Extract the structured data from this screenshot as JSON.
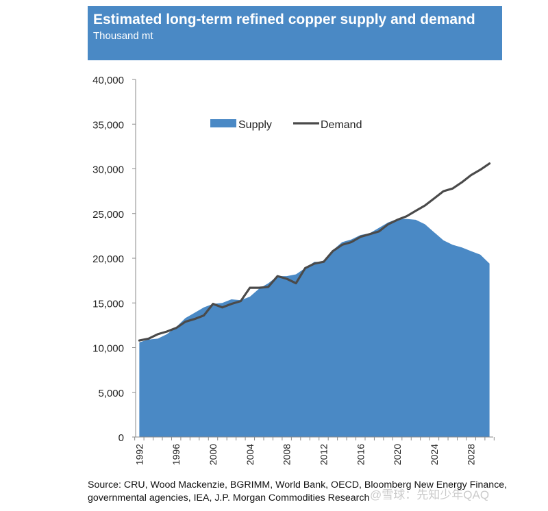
{
  "header": {
    "title": "Estimated long-term refined copper supply and demand",
    "subtitle": "Thousand mt"
  },
  "footer": {
    "source_line1": "Source: CRU, Wood Mackenzie, BGRIMM, World Bank, OECD, Bloomberg New Energy Finance,",
    "source_line2": "governmental agencies, IEA, J.P. Morgan Commodities Research",
    "watermark": "@雪球：先知少年QAQ"
  },
  "colors": {
    "header_band": "#4a89c5",
    "supply_area": "#4a89c5",
    "demand_line": "#4a4a4a"
  },
  "chart_data": {
    "type": "area",
    "title": "Estimated long-term refined copper supply and demand",
    "subtitle": "Thousand mt",
    "ylim": [
      0,
      40000
    ],
    "yticks": [
      0,
      5000,
      10000,
      15000,
      20000,
      25000,
      30000,
      35000,
      40000
    ],
    "ytick_labels": [
      "0",
      "5,000",
      "10,000",
      "15,000",
      "20,000",
      "25,000",
      "30,000",
      "35,000",
      "40,000"
    ],
    "xtick_labels": [
      "1992",
      "1996",
      "2000",
      "2004",
      "2008",
      "2012",
      "2016",
      "2020",
      "2024",
      "2028"
    ],
    "legend_position": "top-center",
    "grid": false,
    "x": [
      1992,
      1993,
      1994,
      1995,
      1996,
      1997,
      1998,
      1999,
      2000,
      2001,
      2002,
      2003,
      2004,
      2005,
      2006,
      2007,
      2008,
      2009,
      2010,
      2011,
      2012,
      2013,
      2014,
      2015,
      2016,
      2017,
      2018,
      2019,
      2020,
      2021,
      2022,
      2023,
      2024,
      2025,
      2026,
      2027,
      2028,
      2029,
      2030
    ],
    "series": [
      {
        "name": "Supply",
        "type": "area",
        "values": [
          10600,
          10900,
          11000,
          11500,
          12300,
          13300,
          13900,
          14500,
          14900,
          15000,
          15400,
          15300,
          15700,
          16600,
          17200,
          18000,
          18000,
          18200,
          18900,
          19600,
          19600,
          20900,
          21800,
          22100,
          22600,
          22800,
          23400,
          24000,
          24400,
          24400,
          24300,
          23800,
          22900,
          22000,
          21500,
          21200,
          20800,
          20400,
          19400
        ],
        "legend_label": "Supply"
      },
      {
        "name": "Demand",
        "type": "line",
        "values": [
          10800,
          11000,
          11500,
          11800,
          12200,
          12900,
          13200,
          13600,
          14900,
          14500,
          14900,
          15200,
          16700,
          16700,
          16800,
          18000,
          17700,
          17200,
          18900,
          19400,
          19600,
          20800,
          21500,
          21800,
          22400,
          22700,
          23000,
          23800,
          24300,
          24700,
          25300,
          25900,
          26700,
          27500,
          27800,
          28500,
          29300,
          29900,
          30600
        ],
        "legend_label": "Demand"
      }
    ]
  }
}
